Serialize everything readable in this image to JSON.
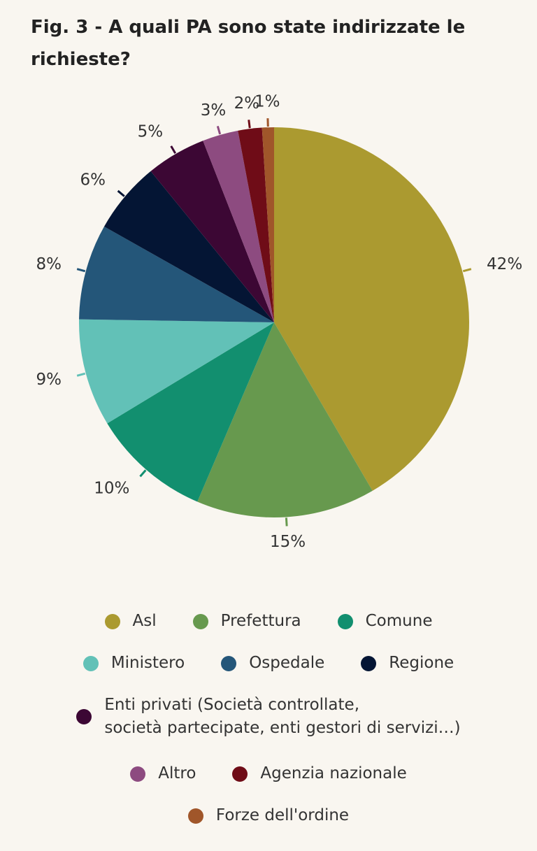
{
  "figure": {
    "title": "Fig. 3 - A quali PA sono state indirizzate le richieste?"
  },
  "chart_data": {
    "type": "pie",
    "title": "Fig. 3 - A quali PA sono state indirizzate le richieste?",
    "start_angle": "12 o'clock",
    "direction": "clockwise",
    "legend_position": "bottom",
    "slices": [
      {
        "name": "Asl",
        "value": 42,
        "label": "42%",
        "color": "#ab9a30"
      },
      {
        "name": "Prefettura",
        "value": 15,
        "label": "15%",
        "color": "#67994e"
      },
      {
        "name": "Comune",
        "value": 10,
        "label": "10%",
        "color": "#128f6f"
      },
      {
        "name": "Ministero",
        "value": 9,
        "label": "9%",
        "color": "#62c1b7"
      },
      {
        "name": "Ospedale",
        "value": 8,
        "label": "8%",
        "color": "#245679"
      },
      {
        "name": "Regione",
        "value": 6,
        "label": "6%",
        "color": "#041534"
      },
      {
        "name": "Enti privati (Società controllate,\nsocietà partecipate, enti gestori di servizi…)",
        "value": 5,
        "label": "5%",
        "color": "#3c0734"
      },
      {
        "name": "Altro",
        "value": 3,
        "label": "3%",
        "color": "#8d4b80"
      },
      {
        "name": "Agenzia nazionale",
        "value": 2,
        "label": "2%",
        "color": "#6f0c17"
      },
      {
        "name": "Forze dell'ordine",
        "value": 1,
        "label": "1%",
        "color": "#a0562a"
      }
    ]
  }
}
